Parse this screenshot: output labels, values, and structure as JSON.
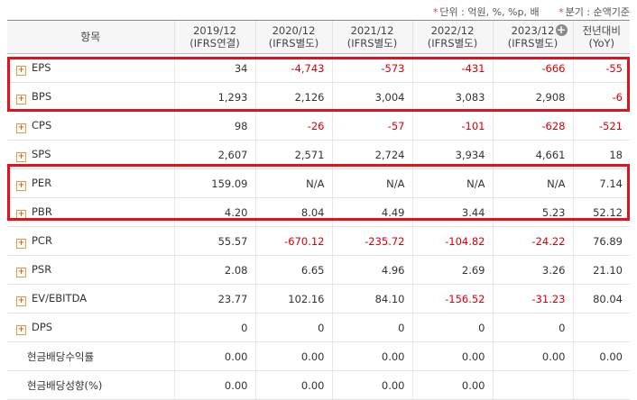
{
  "notes": {
    "unit": "단위 : 억원, %, %p, 배",
    "basis": "분기 : 순액기준",
    "mark": "*"
  },
  "header": {
    "item": "항목",
    "cols": [
      {
        "year": "2019/12",
        "type": "(IFRS연결)"
      },
      {
        "year": "2020/12",
        "type": "(IFRS별도)"
      },
      {
        "year": "2021/12",
        "type": "(IFRS별도)"
      },
      {
        "year": "2022/12",
        "type": "(IFRS별도)"
      },
      {
        "year": "2023/12",
        "type": "(IFRS별도)"
      },
      {
        "year": "전년대비",
        "type": "(YoY)"
      }
    ]
  },
  "rows": [
    {
      "label": "EPS",
      "plus": true,
      "values": [
        "34",
        "-4,743",
        "-573",
        "-431",
        "-666",
        "-55"
      ]
    },
    {
      "label": "BPS",
      "plus": true,
      "values": [
        "1,293",
        "2,126",
        "3,004",
        "3,083",
        "2,908",
        "-6"
      ]
    },
    {
      "label": "CPS",
      "plus": true,
      "values": [
        "98",
        "-26",
        "-57",
        "-101",
        "-628",
        "-521"
      ]
    },
    {
      "label": "SPS",
      "plus": true,
      "values": [
        "2,607",
        "2,571",
        "2,724",
        "3,934",
        "4,661",
        "18"
      ]
    },
    {
      "label": "PER",
      "plus": true,
      "values": [
        "159.09",
        "N/A",
        "N/A",
        "N/A",
        "N/A",
        "7.14"
      ]
    },
    {
      "label": "PBR",
      "plus": true,
      "values": [
        "4.20",
        "8.04",
        "4.49",
        "3.44",
        "5.23",
        "52.12"
      ]
    },
    {
      "label": "PCR",
      "plus": true,
      "values": [
        "55.57",
        "-670.12",
        "-235.72",
        "-104.82",
        "-24.22",
        "76.89"
      ]
    },
    {
      "label": "PSR",
      "plus": true,
      "values": [
        "2.08",
        "6.65",
        "4.96",
        "2.69",
        "3.26",
        "21.10"
      ]
    },
    {
      "label": "EV/EBITDA",
      "plus": true,
      "values": [
        "23.77",
        "102.16",
        "84.10",
        "-156.52",
        "-31.23",
        "80.04"
      ]
    },
    {
      "label": "DPS",
      "plus": true,
      "values": [
        "0",
        "0",
        "0",
        "0",
        "0",
        ""
      ]
    },
    {
      "label": "현금배당수익률",
      "plus": false,
      "values": [
        "0.00",
        "0.00",
        "0.00",
        "0.00",
        "0.00",
        "0.00"
      ]
    },
    {
      "label": "현금배당성향(%)",
      "plus": false,
      "values": [
        "0.00",
        "0.00",
        "0.00",
        "0.00",
        "",
        ""
      ]
    }
  ],
  "colors": {
    "negative": "#d8000c",
    "highlight": "#e5101c",
    "plus_icon": "#e0602a"
  },
  "icons": {
    "expand": "plus-box-icon",
    "add_column": "plus-circle-icon"
  }
}
